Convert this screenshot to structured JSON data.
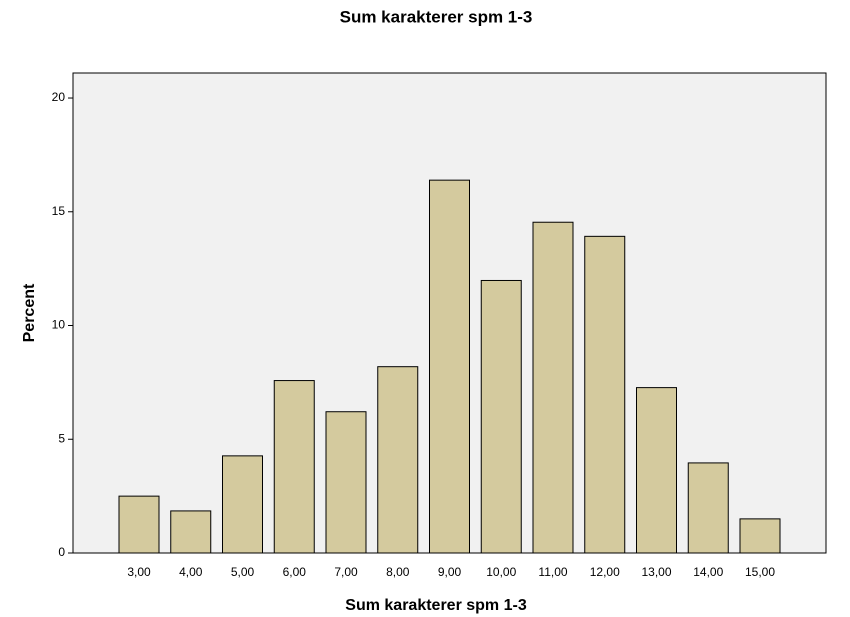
{
  "chart_data": {
    "type": "bar",
    "title": "Sum karakterer spm 1-3",
    "x_label": "Sum karakterer spm 1-3",
    "y_label": "Percent",
    "categories": [
      "3,00",
      "4,00",
      "5,00",
      "6,00",
      "7,00",
      "8,00",
      "9,00",
      "10,00",
      "11,00",
      "12,00",
      "13,00",
      "14,00",
      "15,00"
    ],
    "values": [
      2.5,
      1.85,
      4.27,
      7.58,
      6.21,
      8.19,
      16.39,
      11.98,
      14.54,
      13.92,
      7.27,
      3.96,
      1.5
    ],
    "color": "#d4ca9e",
    "ylim": [
      0,
      21.1
    ],
    "yticks": [
      0,
      5,
      10,
      15,
      20
    ],
    "grid": false
  }
}
